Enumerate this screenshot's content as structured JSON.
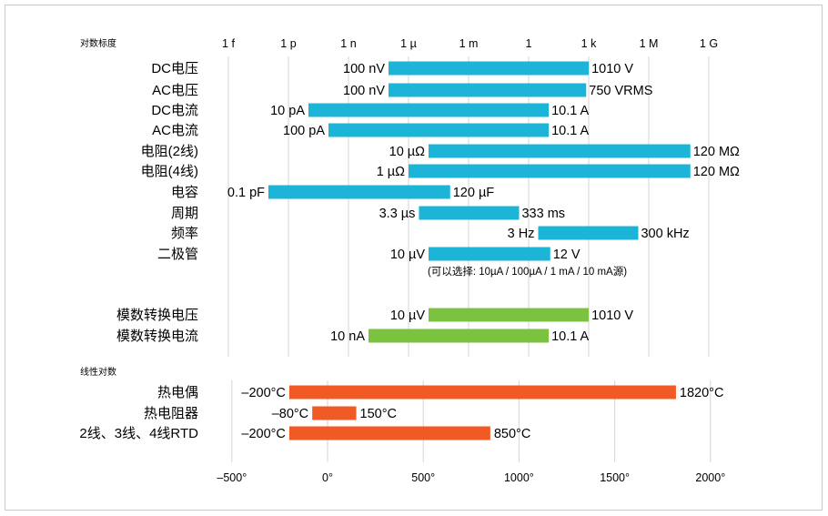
{
  "chart_data": [
    {
      "type": "bar",
      "subtype": "range",
      "section_label": "对数标度",
      "scale": "log",
      "ticks": [
        {
          "label": "1 f",
          "value": 1e-15
        },
        {
          "label": "1 p",
          "value": 1e-12
        },
        {
          "label": "1 n",
          "value": 1e-09
        },
        {
          "label": "1 µ",
          "value": 1e-06
        },
        {
          "label": "1 m",
          "value": 0.001
        },
        {
          "label": "1",
          "value": 1
        },
        {
          "label": "1 k",
          "value": 1000.0
        },
        {
          "label": "1 M",
          "value": 1000000.0
        },
        {
          "label": "1 G",
          "value": 1000000000.0
        }
      ],
      "grid": true,
      "series": [
        {
          "name": "blue",
          "color": "#1cb5d8",
          "rows": [
            {
              "category": "DC电压",
              "min": 1e-07,
              "max": 1010,
              "min_label": "100 nV",
              "max_label": "1010 V"
            },
            {
              "category": "AC电压",
              "min": 1e-07,
              "max": 750,
              "min_label": "100 nV",
              "max_label": "750 VRMS"
            },
            {
              "category": "DC电流",
              "min": 1e-11,
              "max": 10.1,
              "min_label": "10 pA",
              "max_label": "10.1 A"
            },
            {
              "category": "AC电流",
              "min": 1e-10,
              "max": 10.1,
              "min_label": "100 pA",
              "max_label": "10.1 A"
            },
            {
              "category": "电阻(2线)",
              "min": 1e-05,
              "max": 120000000.0,
              "min_label": "10 µΩ",
              "max_label": "120 MΩ"
            },
            {
              "category": "电阻(4线)",
              "min": 1e-06,
              "max": 120000000.0,
              "min_label": "1 µΩ",
              "max_label": "120 MΩ"
            },
            {
              "category": "电容",
              "min": 1e-13,
              "max": 0.00012,
              "min_label": "0.1 pF",
              "max_label": "120 µF"
            },
            {
              "category": "周期",
              "min": 3.3e-06,
              "max": 0.333,
              "min_label": "3.3 µs",
              "max_label": "333 ms"
            },
            {
              "category": "频率",
              "min": 3,
              "max": 300000.0,
              "min_label": "3 Hz",
              "max_label": "300 kHz"
            },
            {
              "category": "二极管",
              "min": 1e-05,
              "max": 12,
              "min_label": "10 µV",
              "max_label": "12 V"
            }
          ]
        },
        {
          "name": "green",
          "color": "#7cc241",
          "rows": [
            {
              "category": "模数转换电压",
              "min": 1e-05,
              "max": 1010,
              "min_label": "10 µV",
              "max_label": "1010 V"
            },
            {
              "category": "模数转换电流",
              "min": 1e-08,
              "max": 10.1,
              "min_label": "10 nA",
              "max_label": "10.1 A"
            }
          ]
        }
      ],
      "annotation": "(可以选择: 10µA / 100µA / 1 mA / 10 mA源)"
    },
    {
      "type": "bar",
      "subtype": "range",
      "section_label": "线性对数",
      "scale": "linear",
      "xlim": [
        -500,
        2000
      ],
      "ticks": [
        {
          "label": "–500°",
          "value": -500
        },
        {
          "label": "0°",
          "value": 0
        },
        {
          "label": "500°",
          "value": 500
        },
        {
          "label": "1000°",
          "value": 1000
        },
        {
          "label": "1500°",
          "value": 1500
        },
        {
          "label": "2000°",
          "value": 2000
        }
      ],
      "grid": true,
      "series": [
        {
          "name": "orange",
          "color": "#f05a24",
          "rows": [
            {
              "category": "热电偶",
              "min": -200,
              "max": 1820,
              "min_label": "–200°C",
              "max_label": "1820°C"
            },
            {
              "category": "热电阻器",
              "min": -80,
              "max": 150,
              "min_label": "–80°C",
              "max_label": "150°C"
            },
            {
              "category": "2线、3线、4线RTD",
              "min": -200,
              "max": 850,
              "min_label": "–200°C",
              "max_label": "850°C"
            }
          ]
        }
      ]
    }
  ]
}
